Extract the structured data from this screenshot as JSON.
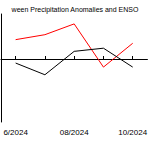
{
  "chart_data": {
    "type": "line",
    "title": "ween Precipitation Anomalies and ENSO",
    "categories": [
      "6/2024",
      null,
      "08/2024",
      null,
      "10/2024"
    ],
    "series": [
      {
        "color": "#ff0000",
        "values": [
          0.43,
          0.54,
          0.78,
          -0.18,
          0.35
        ]
      },
      {
        "color": "#000000",
        "values": [
          -0.09,
          -0.35,
          0.17,
          0.24,
          -0.18
        ]
      }
    ],
    "ylim": [
      -1.4,
      1.0
    ],
    "hline": 0,
    "grid": false,
    "tick_labels": "x"
  }
}
